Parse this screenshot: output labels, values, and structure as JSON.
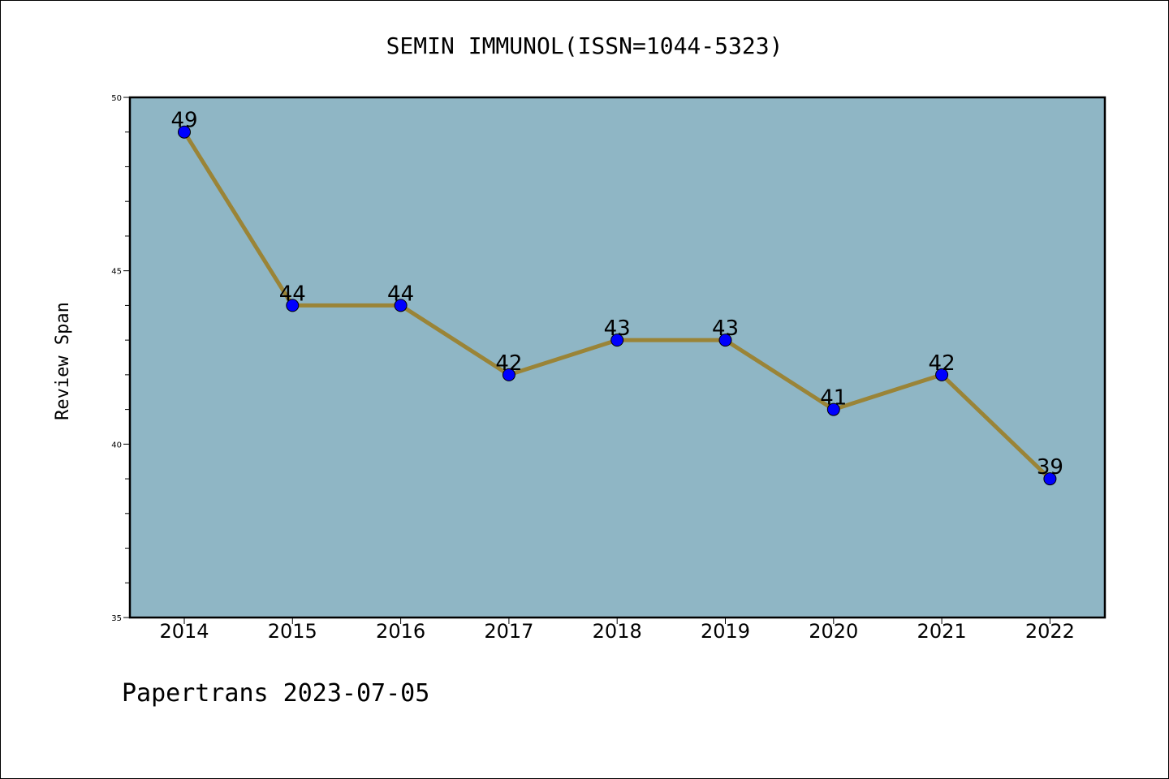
{
  "chart_data": {
    "type": "line",
    "title": "SEMIN IMMUNOL(ISSN=1044-5323)",
    "xlabel": "",
    "ylabel": "Review Span",
    "categories": [
      "2014",
      "2015",
      "2016",
      "2017",
      "2018",
      "2019",
      "2020",
      "2021",
      "2022"
    ],
    "values": [
      49,
      44,
      44,
      42,
      43,
      43,
      41,
      42,
      39
    ],
    "ylim": [
      35,
      50
    ],
    "yticks": [
      "35",
      "40",
      "45",
      "50"
    ],
    "grid": false,
    "legend": "none",
    "colors": {
      "plot_background": "#8fb6c5",
      "line": "#9a8437",
      "marker": "#0000ff"
    }
  },
  "footer": {
    "text": "Papertrans 2023-07-05"
  }
}
